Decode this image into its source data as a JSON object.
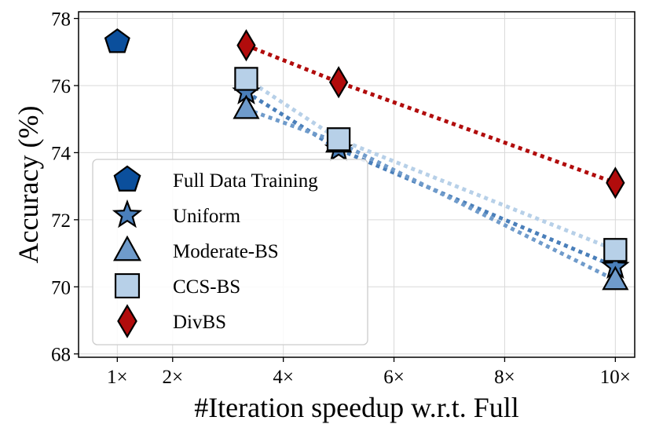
{
  "chart_data": {
    "type": "line",
    "title": "",
    "xlabel": "#Iteration speedup w.r.t. Full",
    "ylabel": "Accuracy (%)",
    "x_ticks": [
      {
        "value": 1,
        "label": "1×"
      },
      {
        "value": 2,
        "label": "2×"
      },
      {
        "value": 4,
        "label": "4×"
      },
      {
        "value": 6,
        "label": "6×"
      },
      {
        "value": 8,
        "label": "8×"
      },
      {
        "value": 10,
        "label": "10×"
      }
    ],
    "y_ticks": [
      68,
      70,
      72,
      74,
      76,
      78
    ],
    "xlim": [
      0.3,
      10.35
    ],
    "ylim": [
      67.9,
      78.2
    ],
    "grid": true,
    "legend_position": "lower-left",
    "series": [
      {
        "name": "Full Data Training",
        "marker": "pentagon",
        "color": "#0b4f9c",
        "line": false,
        "x": [
          1
        ],
        "y": [
          77.3
        ]
      },
      {
        "name": "Uniform",
        "marker": "star",
        "color": "#4a7fba",
        "line": true,
        "x": [
          3.33,
          5,
          10
        ],
        "y": [
          75.8,
          74.1,
          70.6
        ]
      },
      {
        "name": "Moderate-BS",
        "marker": "triangle",
        "color": "#6f9bcb",
        "line": true,
        "x": [
          3.33,
          5,
          10
        ],
        "y": [
          75.3,
          74.3,
          70.2
        ]
      },
      {
        "name": "CCS-BS",
        "marker": "square",
        "color": "#b7d0e8",
        "line": true,
        "x": [
          3.33,
          5,
          10
        ],
        "y": [
          76.2,
          74.4,
          71.1
        ]
      },
      {
        "name": "DivBS",
        "marker": "diamond",
        "color": "#b10c0c",
        "line": true,
        "x": [
          3.33,
          5,
          10
        ],
        "y": [
          77.2,
          76.1,
          73.1
        ]
      }
    ]
  }
}
